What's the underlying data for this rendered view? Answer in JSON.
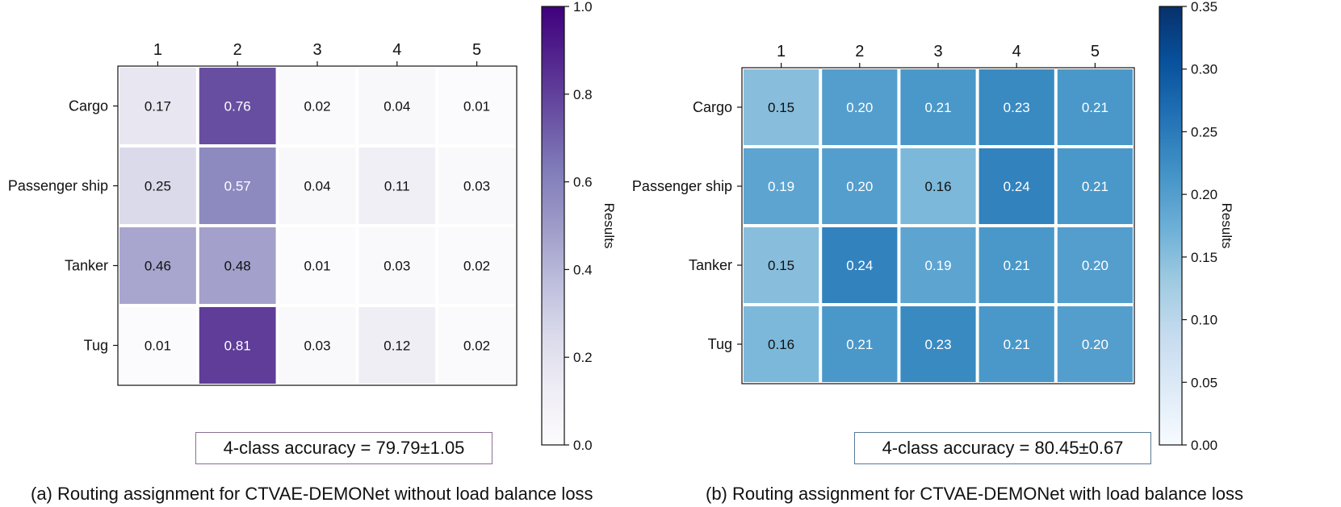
{
  "chart_data": [
    {
      "type": "heatmap",
      "caption": "(a) Routing assignment for CTVAE-DEMONet without load balance loss",
      "columns": [
        "1",
        "2",
        "3",
        "4",
        "5"
      ],
      "rows": [
        "Cargo",
        "Passenger ship",
        "Tanker",
        "Tug"
      ],
      "values": [
        [
          0.17,
          0.76,
          0.02,
          0.04,
          0.01
        ],
        [
          0.25,
          0.57,
          0.04,
          0.11,
          0.03
        ],
        [
          0.46,
          0.48,
          0.01,
          0.03,
          0.02
        ],
        [
          0.01,
          0.81,
          0.03,
          0.12,
          0.02
        ]
      ],
      "value_labels": [
        [
          "0.17",
          "0.76",
          "0.02",
          "0.04",
          "0.01"
        ],
        [
          "0.25",
          "0.57",
          "0.04",
          "0.11",
          "0.03"
        ],
        [
          "0.46",
          "0.48",
          "0.01",
          "0.03",
          "0.02"
        ],
        [
          "0.01",
          "0.81",
          "0.03",
          "0.12",
          "0.02"
        ]
      ],
      "colormap": "Purples",
      "color_low": "#fcfbfd",
      "color_high": "#3f007d",
      "vmin": 0.0,
      "vmax": 1.0,
      "colorbar_ticks": [
        "0.0",
        "0.2",
        "0.4",
        "0.6",
        "0.8",
        "1.0"
      ],
      "colorbar_label": "Results",
      "annotation": "4-class accuracy = 79.79±1.05",
      "annotation_border_color": "#8a6e94"
    },
    {
      "type": "heatmap",
      "caption": "(b) Routing assignment for CTVAE-DEMONet with load balance loss",
      "columns": [
        "1",
        "2",
        "3",
        "4",
        "5"
      ],
      "rows": [
        "Cargo",
        "Passenger ship",
        "Tanker",
        "Tug"
      ],
      "values": [
        [
          0.15,
          0.2,
          0.21,
          0.23,
          0.21
        ],
        [
          0.19,
          0.2,
          0.16,
          0.24,
          0.21
        ],
        [
          0.15,
          0.24,
          0.19,
          0.21,
          0.2
        ],
        [
          0.16,
          0.21,
          0.23,
          0.21,
          0.2
        ]
      ],
      "value_labels": [
        [
          "0.15",
          "0.20",
          "0.21",
          "0.23",
          "0.21"
        ],
        [
          "0.19",
          "0.20",
          "0.16",
          "0.24",
          "0.21"
        ],
        [
          "0.15",
          "0.24",
          "0.19",
          "0.21",
          "0.20"
        ],
        [
          "0.16",
          "0.21",
          "0.23",
          "0.21",
          "0.20"
        ]
      ],
      "colormap": "Blues",
      "color_low": "#f7fbff",
      "color_high": "#08306b",
      "vmin": 0.0,
      "vmax": 0.35,
      "colorbar_ticks": [
        "0.00",
        "0.05",
        "0.10",
        "0.15",
        "0.20",
        "0.25",
        "0.30",
        "0.35"
      ],
      "colorbar_label": "Results",
      "annotation": "4-class accuracy = 80.45±0.67",
      "annotation_border_color": "#5a7a96"
    }
  ]
}
